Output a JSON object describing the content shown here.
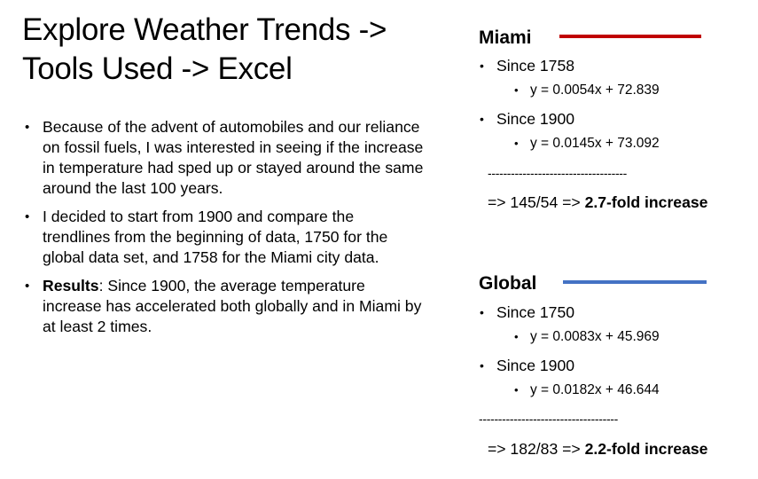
{
  "title": {
    "line1": "Explore Weather Trends ->",
    "line2": "Tools Used -> Excel"
  },
  "bullets": [
    {
      "text": "Because of the advent of automobiles and our reliance on fossil fuels, I was interested in seeing if the increase in temperature had sped up or stayed around the same around the last 100 years."
    },
    {
      "text": "I decided to start from 1900 and compare the trendlines from the beginning of data, 1750 for the global data set, and 1758 for the Miami city data."
    },
    {
      "bold": "Results",
      "text": ":  Since 1900, the average temperature increase has accelerated both globally and in Miami by at least 2 times."
    }
  ],
  "miami": {
    "title": "Miami",
    "color": "#c00000",
    "period1": "Since 1758",
    "eq1": "y = 0.0054x + 72.839",
    "period2": "Since 1900",
    "eq2": "y = 0.0145x + 73.092",
    "dashes": "------------------------------------",
    "result_prefix": "=> 145/54 => ",
    "result_bold": "2.7-fold increase"
  },
  "global": {
    "title": "Global",
    "color": "#4472c4",
    "period1": "Since 1750",
    "eq1": "y = 0.0083x + 45.969",
    "period2": "Since 1900",
    "eq2": "y = 0.0182x + 46.644",
    "dashes": "------------------------------------",
    "result_prefix": "=> 182/83 => ",
    "result_bold": "2.2-fold increase"
  }
}
